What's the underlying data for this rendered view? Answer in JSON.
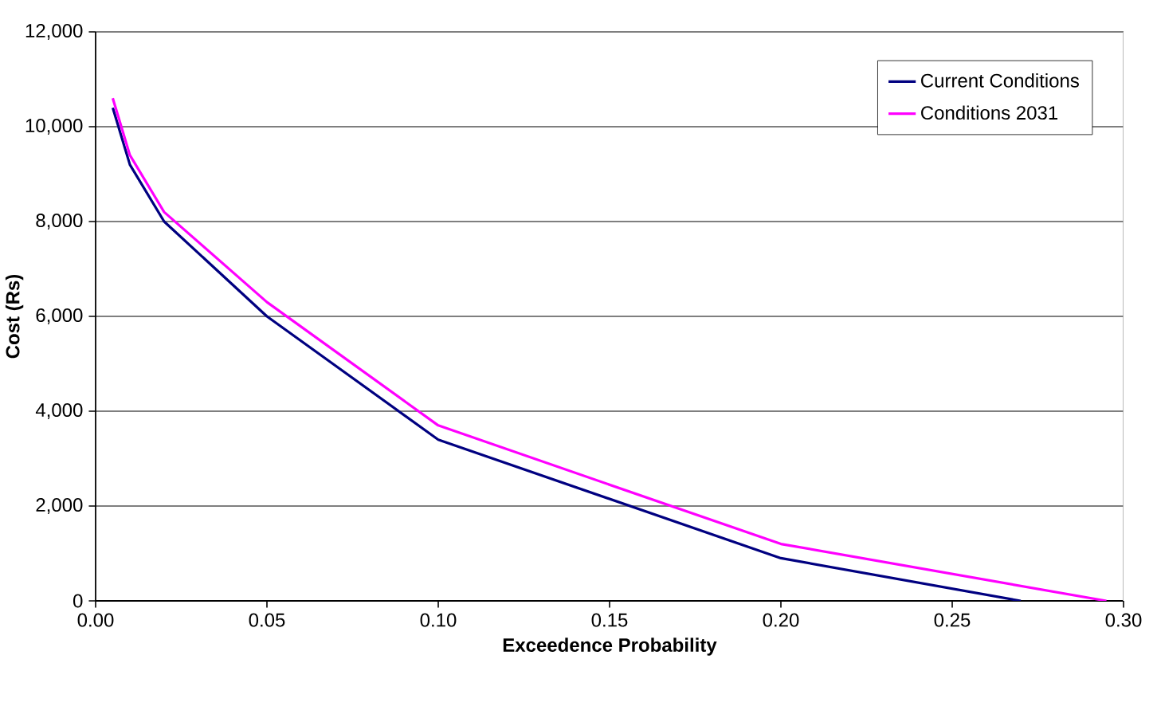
{
  "chart_data": {
    "type": "line",
    "xlabel": "Exceedence Probability",
    "ylabel": "Cost (Rs)",
    "xlim": [
      0,
      0.3
    ],
    "xticks": [
      {
        "value": 0,
        "label": "0.00"
      },
      {
        "value": 0.05,
        "label": "0.05"
      },
      {
        "value": 0.1,
        "label": "0.10"
      },
      {
        "value": 0.15,
        "label": "0.15"
      },
      {
        "value": 0.2,
        "label": "0.20"
      },
      {
        "value": 0.25,
        "label": "0.25"
      },
      {
        "value": 0.3,
        "label": "0.30"
      }
    ],
    "ylim": [
      0,
      12000
    ],
    "yticks": [
      {
        "value": 0,
        "label": "0"
      },
      {
        "value": 2000,
        "label": "2,000"
      },
      {
        "value": 4000,
        "label": "4,000"
      },
      {
        "value": 6000,
        "label": "6,000"
      },
      {
        "value": 8000,
        "label": "8,000"
      },
      {
        "value": 10000,
        "label": "10,000"
      },
      {
        "value": 12000,
        "label": "12,000"
      }
    ],
    "grid": "y",
    "legend": "top right",
    "marker": "none",
    "line_style": "solid",
    "series": [
      {
        "name": "Current Conditions",
        "color": "#000080",
        "x": [
          0.005,
          0.01,
          0.02,
          0.05,
          0.1,
          0.2,
          0.27
        ],
        "values": [
          10400,
          9200,
          8000,
          6000,
          3400,
          900,
          0
        ]
      },
      {
        "name": "Conditions 2031",
        "color": "#ff00ff",
        "x": [
          0.005,
          0.01,
          0.02,
          0.05,
          0.1,
          0.2,
          0.295
        ],
        "values": [
          10600,
          9400,
          8200,
          6300,
          3700,
          1200,
          0
        ]
      }
    ]
  }
}
